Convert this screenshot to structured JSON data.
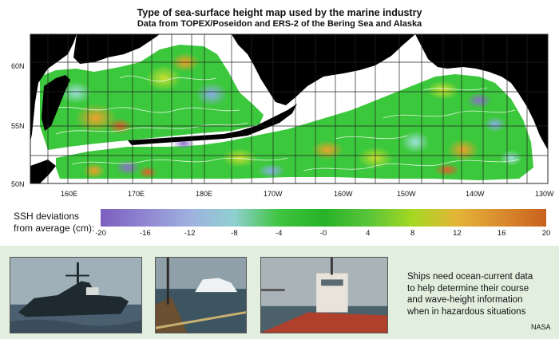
{
  "header": {
    "title": "Type of sea-surface height map used by the marine industry",
    "subtitle": "Data from TOPEX/Poseidon and ERS-2 of the Bering Sea and Alaska"
  },
  "map": {
    "lat_labels": [
      "60N",
      "55N",
      "50N"
    ],
    "lon_labels": [
      "160E",
      "170E",
      "180E",
      "170W",
      "160W",
      "150W",
      "140W",
      "130W"
    ]
  },
  "legend": {
    "label_line1": "SSH deviations",
    "label_line2": "from average (cm):",
    "ticks": [
      "-20",
      "-16",
      "-12",
      "-8",
      "-4",
      "-0",
      "4",
      "8",
      "12",
      "16",
      "20"
    ],
    "colors": [
      "#7d5fbf",
      "#8f86d2",
      "#9fb1e0",
      "#8fd0d0",
      "#3fc43f",
      "#27b227",
      "#59c43a",
      "#a5d822",
      "#e4b438",
      "#d98b2e",
      "#c9601c"
    ]
  },
  "caption": {
    "line1": "Ships need ocean-current data",
    "line2": "to help determine their course",
    "line3": "and wave-height information",
    "line4": "when in hazardous situations"
  },
  "credit": "NASA"
}
